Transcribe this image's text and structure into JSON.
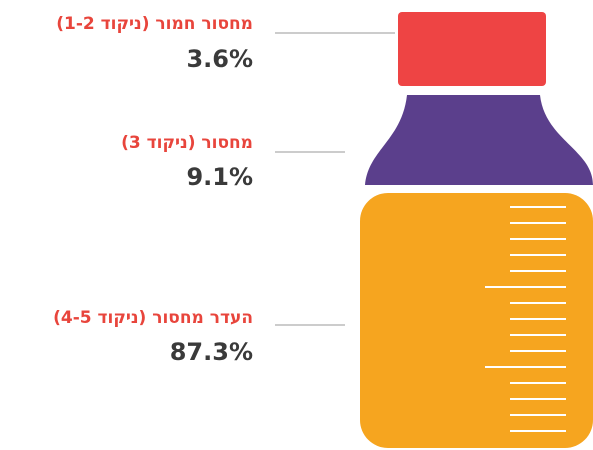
{
  "chart_data": {
    "type": "bottle",
    "categories": [
      "מחסור חמור (ניקוד 1-2)",
      "מחסור (ניקוד 3)",
      "העדר מחסור (ניקוד 4-5)"
    ],
    "values": [
      3.6,
      9.1,
      87.3
    ],
    "value_labels": [
      "3.6%",
      "9.1%",
      "87.3%"
    ],
    "colors": [
      "#ee4444",
      "#5b3f8c",
      "#f6a51f"
    ]
  }
}
